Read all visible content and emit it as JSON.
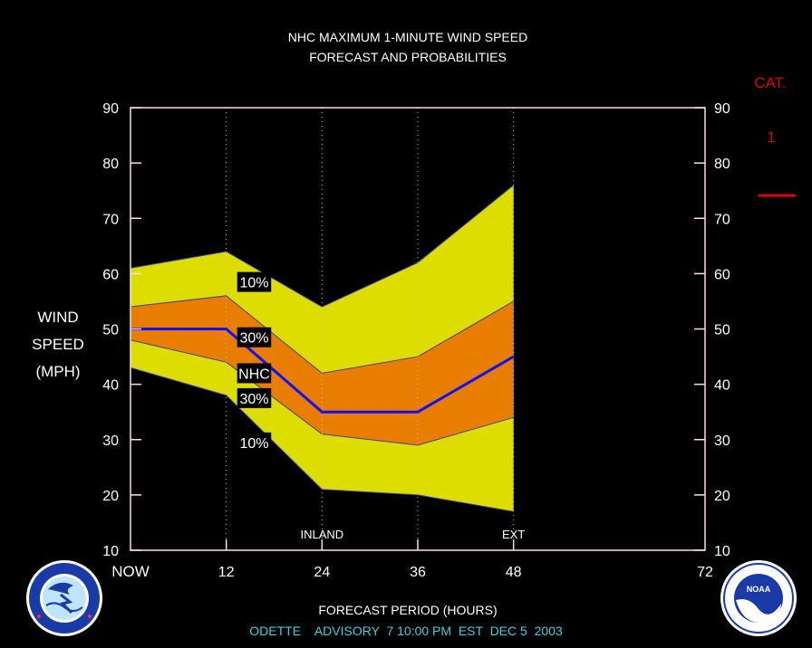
{
  "title_line1": "NHC MAXIMUM 1-MINUTE WIND SPEED",
  "title_line2": "FORECAST AND PROBABILITIES",
  "ylabel": [
    "WIND",
    "SPEED",
    "(MPH)"
  ],
  "xlabel": "FORECAST PERIOD (HOURS)",
  "advisory": "ODETTE    ADVISORY  7 10:00 PM  EST  DEC 5  2003",
  "category": {
    "label": "CAT.",
    "value": "1",
    "color": "#dd0000"
  },
  "colors": {
    "outer_band": "#dddd00",
    "inner_band": "#e87d00",
    "nhc_line": "#1010ff",
    "frame": "#ffdddd",
    "advisory_text": "#40d0e0"
  },
  "logos": {
    "left": "nws-logo-icon",
    "right": "noaa-logo-icon"
  },
  "chart_data": {
    "type": "area",
    "x": [
      0,
      12,
      24,
      36,
      48
    ],
    "xlim": [
      0,
      72
    ],
    "ylim": [
      10,
      90
    ],
    "x_tick_labels": [
      {
        "x": 0,
        "label": "NOW"
      },
      {
        "x": 12,
        "label": "12"
      },
      {
        "x": 24,
        "label": "24"
      },
      {
        "x": 36,
        "label": "36"
      },
      {
        "x": 48,
        "label": "48"
      },
      {
        "x": 72,
        "label": "72"
      }
    ],
    "y_ticks": [
      10,
      20,
      30,
      40,
      50,
      60,
      70,
      80,
      90
    ],
    "band_10_upper": [
      61,
      64,
      54,
      62,
      76
    ],
    "band_30_upper": [
      54,
      56,
      42,
      45,
      55
    ],
    "nhc": [
      50,
      50,
      35,
      35,
      45
    ],
    "band_30_lower": [
      48,
      44,
      31,
      29,
      34
    ],
    "band_10_lower": [
      43,
      38,
      21,
      20,
      17
    ],
    "band_labels": [
      {
        "text": "10%",
        "x": 15.5,
        "y": 58.5
      },
      {
        "text": "30%",
        "x": 15.5,
        "y": 48.5
      },
      {
        "text": "NHC",
        "x": 15.5,
        "y": 42
      },
      {
        "text": "30%",
        "x": 15.5,
        "y": 37.5
      },
      {
        "text": "10%",
        "x": 15.5,
        "y": 29.5
      }
    ],
    "vertical_lines": [
      12,
      24,
      36,
      48
    ],
    "annotations": [
      {
        "text": "INLAND",
        "x": 24
      },
      {
        "text": "EXT",
        "x": 48
      }
    ],
    "grid": "vertical dotted"
  }
}
